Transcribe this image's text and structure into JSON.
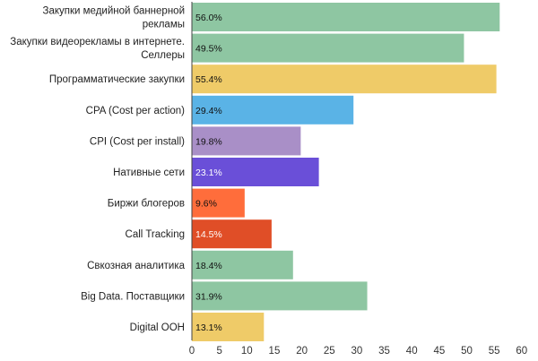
{
  "chart_data": {
    "type": "bar",
    "orientation": "horizontal",
    "title": "",
    "xlabel": "",
    "ylabel": "",
    "xlim": [
      0,
      60
    ],
    "xticks": [
      0,
      5,
      10,
      15,
      20,
      25,
      30,
      35,
      40,
      45,
      50,
      55,
      60
    ],
    "grid": false,
    "legend": "none",
    "categories": [
      [
        "Закупки медийной баннерной",
        "рекламы"
      ],
      [
        "Закупки видеорекламы в интернете.",
        "Селлеры"
      ],
      [
        "Программатические закупки"
      ],
      [
        "CPA (Cost per action)"
      ],
      [
        "CPI (Cost per install)"
      ],
      [
        "Нативные сети"
      ],
      [
        "Биржи блогеров"
      ],
      [
        "Call Tracking"
      ],
      [
        "Свкозная аналитика"
      ],
      [
        "Big Data. Поставщики"
      ],
      [
        "Digital OOH"
      ]
    ],
    "values": [
      56.0,
      49.5,
      55.4,
      29.4,
      19.8,
      23.1,
      9.6,
      14.5,
      18.4,
      31.9,
      13.1
    ],
    "value_labels": [
      "56.0%",
      "49.5%",
      "55.4%",
      "29.4%",
      "19.8%",
      "23.1%",
      "9.6%",
      "14.5%",
      "18.4%",
      "31.9%",
      "13.1%"
    ],
    "colors": [
      "#8ec6a2",
      "#8ec6a2",
      "#efcb68",
      "#5ab3e6",
      "#a98fc7",
      "#6a4fd8",
      "#ff6d3b",
      "#e04e27",
      "#8ec6a2",
      "#8ec6a2",
      "#efcb68"
    ],
    "label_colors": [
      "#111111",
      "#111111",
      "#111111",
      "#111111",
      "#111111",
      "#ffffff",
      "#111111",
      "#ffffff",
      "#111111",
      "#111111",
      "#111111"
    ]
  }
}
